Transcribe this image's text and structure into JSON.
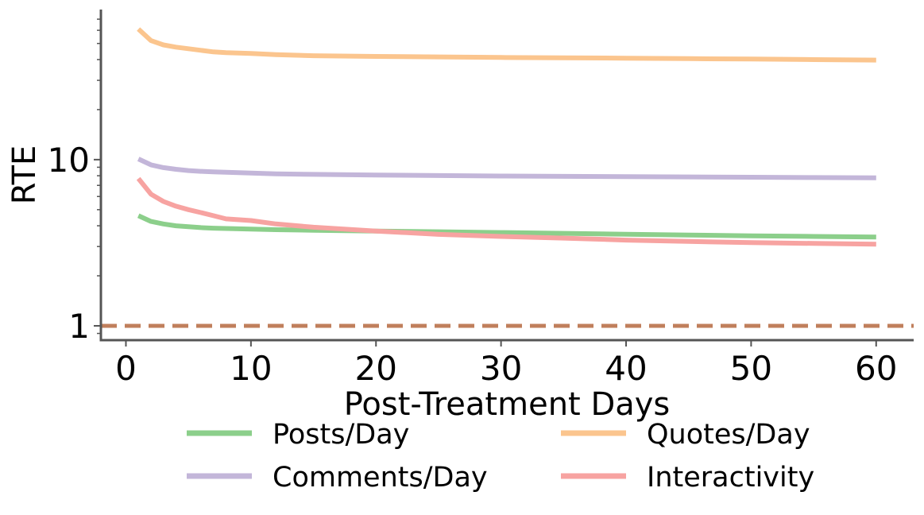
{
  "chart_data": {
    "type": "line",
    "xlabel": "Post-Treatment Days",
    "ylabel": "RTE",
    "xlim": [
      -2,
      63
    ],
    "ylim": [
      0.82,
      80
    ],
    "yscale": "log",
    "x_ticks": [
      0,
      10,
      20,
      30,
      40,
      50,
      60
    ],
    "x_tick_labels": [
      "0",
      "10",
      "20",
      "30",
      "40",
      "50",
      "60"
    ],
    "y_ticks": [
      1,
      10
    ],
    "y_tick_labels": [
      "1",
      "10"
    ],
    "grid": false,
    "legend_position": "bottom",
    "x": [
      1,
      2,
      3,
      4,
      5,
      6,
      7,
      8,
      10,
      12,
      15,
      20,
      25,
      30,
      35,
      40,
      45,
      50,
      55,
      60
    ],
    "series": [
      {
        "name": "Posts/Day",
        "color": "#8ccf8b",
        "values": [
          4.6,
          4.25,
          4.1,
          4.0,
          3.95,
          3.9,
          3.87,
          3.85,
          3.82,
          3.79,
          3.76,
          3.72,
          3.68,
          3.64,
          3.6,
          3.56,
          3.52,
          3.48,
          3.45,
          3.42
        ]
      },
      {
        "name": "Quotes/Day",
        "color": "#fbc58e",
        "values": [
          61,
          52,
          49,
          47.5,
          46.5,
          45.5,
          44.5,
          44,
          43.5,
          42.8,
          42.2,
          41.8,
          41.5,
          41.2,
          41.0,
          40.8,
          40.5,
          40.3,
          40.0,
          39.7
        ]
      },
      {
        "name": "Comments/Day",
        "color": "#c3b6d9",
        "values": [
          10.1,
          9.3,
          8.95,
          8.75,
          8.6,
          8.5,
          8.45,
          8.4,
          8.3,
          8.22,
          8.15,
          8.08,
          8.02,
          7.97,
          7.93,
          7.9,
          7.87,
          7.84,
          7.8,
          7.77
        ]
      },
      {
        "name": "Interactivity",
        "color": "#f7a3a1",
        "values": [
          7.7,
          6.2,
          5.6,
          5.25,
          5.0,
          4.8,
          4.6,
          4.4,
          4.3,
          4.1,
          3.92,
          3.72,
          3.55,
          3.45,
          3.37,
          3.28,
          3.22,
          3.17,
          3.13,
          3.1
        ]
      }
    ],
    "reference_line": {
      "y": 1,
      "color": "#c07f5c",
      "style": "dashed"
    }
  }
}
